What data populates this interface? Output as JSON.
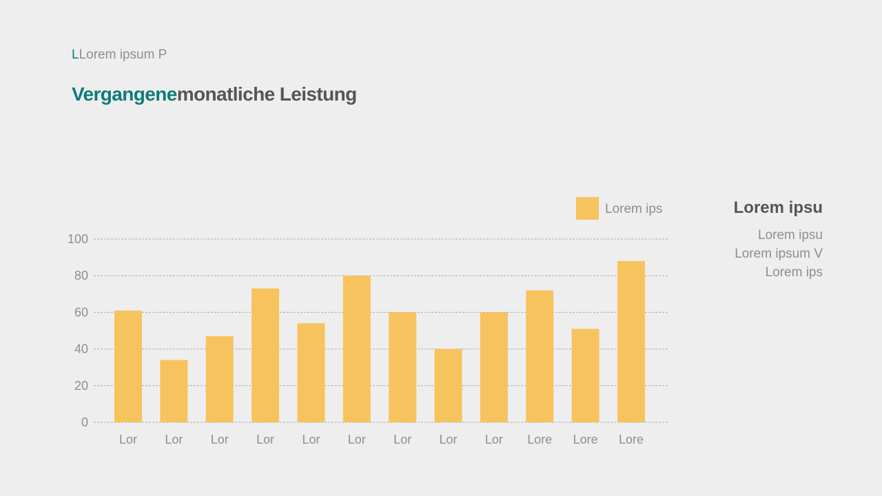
{
  "header": {
    "subtitle_first": "L",
    "subtitle_rest": "Lorem ipsum P",
    "title_accent": "Vergangene",
    "title_rest": "monatliche Leistung"
  },
  "side_panel": {
    "heading": "Lorem ipsu",
    "lines": [
      "Lorem ipsu",
      "Lorem ipsum V",
      "Lorem ips"
    ]
  },
  "chart_data": {
    "type": "bar",
    "categories": [
      "Lor",
      "Lor",
      "Lor",
      "Lor",
      "Lor",
      "Lor",
      "Lor",
      "Lor",
      "Lor",
      "Lore",
      "Lore",
      "Lore"
    ],
    "series": [
      {
        "name": "Lorem ips",
        "values": [
          61,
          34,
          47,
          73,
          54,
          80,
          60,
          40,
          60,
          72,
          51,
          88
        ],
        "color": "#f7c35f"
      }
    ],
    "ylim": [
      0,
      100
    ],
    "yticks": [
      0,
      20,
      40,
      60,
      80,
      100
    ],
    "grid": true,
    "legend": "top-right",
    "colors": {
      "grid": "#a9a9a9",
      "tick_text": "#8e8e8e"
    }
  }
}
